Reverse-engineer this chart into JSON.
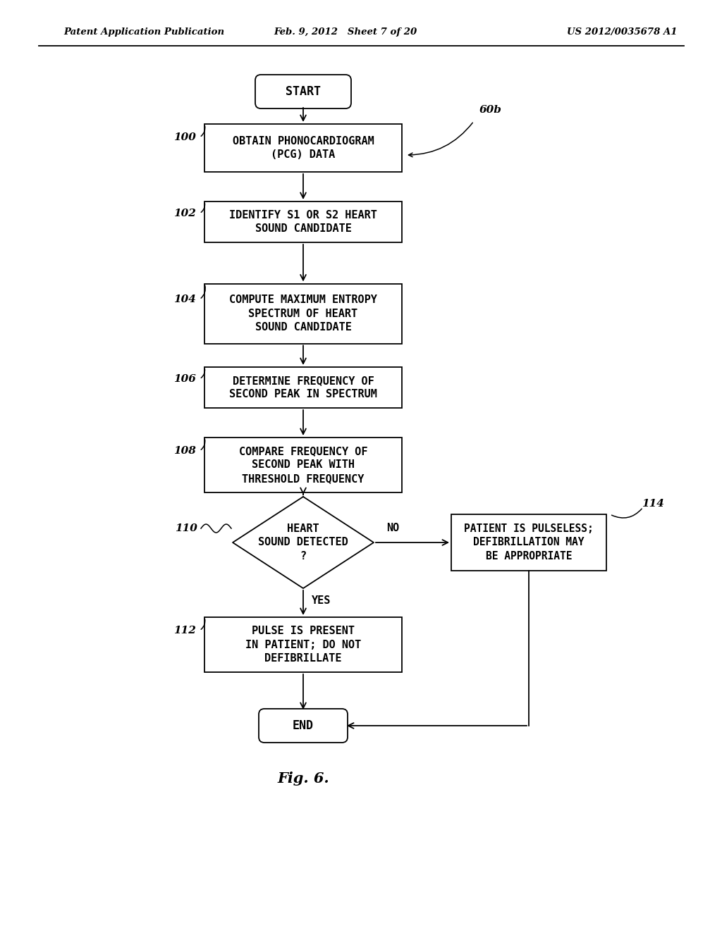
{
  "bg_color": "#ffffff",
  "header_left": "Patent Application Publication",
  "header_mid": "Feb. 9, 2012   Sheet 7 of 20",
  "header_right": "US 2012/0035678 A1",
  "figure_label": "Fig. 6.",
  "box_100": "OBTAIN PHONOCARDIOGRAM\n(PCG) DATA",
  "box_102": "IDENTIFY S1 OR S2 HEART\nSOUND CANDIDATE",
  "box_104": "COMPUTE MAXIMUM ENTROPY\nSPECTRUM OF HEART\nSOUND CANDIDATE",
  "box_106": "DETERMINE FREQUENCY OF\nSECOND PEAK IN SPECTRUM",
  "box_108": "COMPARE FREQUENCY OF\nSECOND PEAK WITH\nTHRESHOLD FREQUENCY",
  "diamond_110": "HEART\nSOUND DETECTED\n?",
  "box_112": "PULSE IS PRESENT\nIN PATIENT; DO NOT\nDEFIBRILLATE",
  "box_114": "PATIENT IS PULSELESS;\nDEFIBRILLATION MAY\nBE APPROPRIATE",
  "start": "START",
  "end": "END",
  "ref_100": "100",
  "ref_102": "102",
  "ref_104": "104",
  "ref_106": "106",
  "ref_108": "108",
  "ref_110": "110",
  "ref_112": "112",
  "ref_114": "114",
  "ref_60b": "60b",
  "label_yes": "YES",
  "label_no": "NO"
}
